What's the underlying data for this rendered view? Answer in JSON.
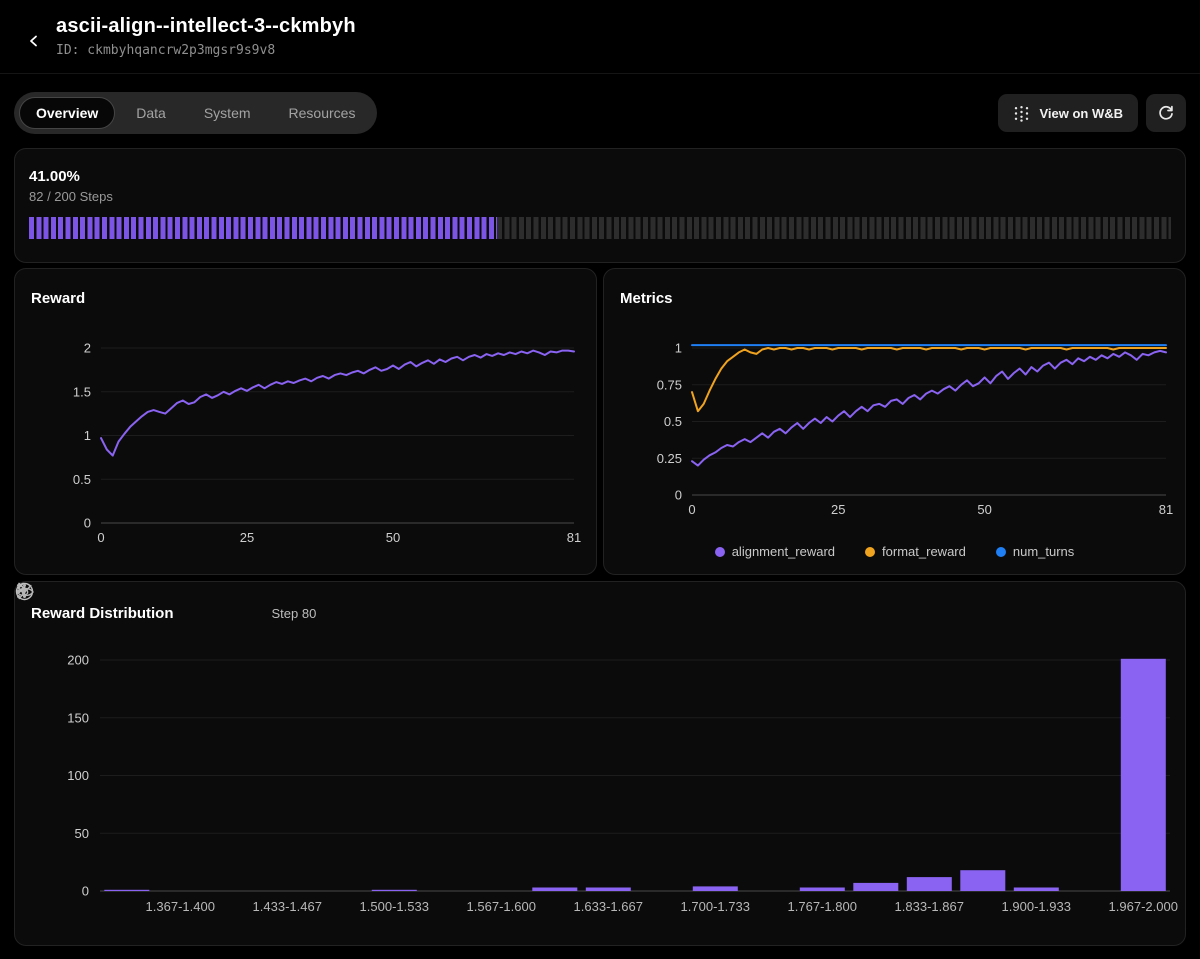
{
  "header": {
    "title": "ascii-align--intellect-3--ckmbyh",
    "run_id": "ID: ckmbyhqancrw2p3mgsr9s9v8"
  },
  "toolbar": {
    "tabs": [
      {
        "label": "Overview",
        "active": true
      },
      {
        "label": "Data",
        "active": false
      },
      {
        "label": "System",
        "active": false
      },
      {
        "label": "Resources",
        "active": false
      }
    ],
    "wandb_label": "View on W&B"
  },
  "progress": {
    "percent_label": "41.00%",
    "steps_label": "82 / 200 Steps",
    "fraction": 0.41
  },
  "distribution": {
    "title": "Reward Distribution",
    "step_label": "Step 80"
  },
  "colors": {
    "accent_purple": "#8a63f2",
    "progress_purple": "#7d55e6",
    "orange": "#f0a31f",
    "blue": "#1f7ff5",
    "grid": "#1d1d1d",
    "axis": "#4a4a4a",
    "tick_text": "#cfcfcf"
  },
  "chart_data": [
    {
      "type": "line",
      "title": "Reward",
      "xlabel": "",
      "ylabel": "",
      "xticks": [
        0,
        25,
        50,
        81
      ],
      "yticks": [
        0,
        0.5,
        1,
        1.5,
        2
      ],
      "xmax": 81,
      "ylim": [
        0,
        2.1
      ],
      "grid": true,
      "series": [
        {
          "name": "reward",
          "color": "#8a63f2",
          "values": [
            0.97,
            0.84,
            0.77,
            0.93,
            1.02,
            1.1,
            1.16,
            1.22,
            1.27,
            1.29,
            1.27,
            1.25,
            1.31,
            1.37,
            1.4,
            1.36,
            1.38,
            1.44,
            1.47,
            1.43,
            1.46,
            1.5,
            1.47,
            1.51,
            1.54,
            1.51,
            1.55,
            1.58,
            1.54,
            1.58,
            1.61,
            1.59,
            1.62,
            1.6,
            1.63,
            1.65,
            1.62,
            1.66,
            1.68,
            1.65,
            1.69,
            1.71,
            1.69,
            1.72,
            1.74,
            1.71,
            1.75,
            1.78,
            1.74,
            1.76,
            1.8,
            1.76,
            1.81,
            1.84,
            1.79,
            1.83,
            1.86,
            1.82,
            1.87,
            1.84,
            1.88,
            1.9,
            1.86,
            1.9,
            1.92,
            1.89,
            1.93,
            1.91,
            1.94,
            1.92,
            1.95,
            1.93,
            1.96,
            1.94,
            1.97,
            1.95,
            1.92,
            1.96,
            1.95,
            1.97,
            1.97,
            1.96
          ]
        }
      ]
    },
    {
      "type": "line",
      "title": "Metrics",
      "xlabel": "",
      "ylabel": "",
      "xticks": [
        0,
        25,
        50,
        81
      ],
      "yticks": [
        0,
        0.25,
        0.5,
        0.75,
        1
      ],
      "xmax": 81,
      "ylim": [
        0,
        1.08
      ],
      "grid": true,
      "legend_position": "bottom",
      "legend": [
        {
          "label": "alignment_reward",
          "color": "#8a63f2"
        },
        {
          "label": "format_reward",
          "color": "#f0a31f"
        },
        {
          "label": "num_turns",
          "color": "#1f7ff5"
        }
      ],
      "series": [
        {
          "name": "alignment_reward",
          "color": "#8a63f2",
          "values": [
            0.23,
            0.2,
            0.24,
            0.27,
            0.29,
            0.32,
            0.34,
            0.33,
            0.36,
            0.38,
            0.36,
            0.39,
            0.42,
            0.39,
            0.43,
            0.45,
            0.42,
            0.46,
            0.49,
            0.45,
            0.49,
            0.52,
            0.49,
            0.53,
            0.5,
            0.54,
            0.57,
            0.53,
            0.57,
            0.6,
            0.57,
            0.61,
            0.62,
            0.6,
            0.64,
            0.65,
            0.62,
            0.66,
            0.68,
            0.65,
            0.69,
            0.71,
            0.69,
            0.72,
            0.74,
            0.71,
            0.75,
            0.78,
            0.74,
            0.76,
            0.8,
            0.76,
            0.81,
            0.84,
            0.79,
            0.83,
            0.86,
            0.82,
            0.87,
            0.84,
            0.88,
            0.9,
            0.86,
            0.9,
            0.92,
            0.89,
            0.93,
            0.91,
            0.94,
            0.92,
            0.95,
            0.93,
            0.96,
            0.94,
            0.97,
            0.95,
            0.92,
            0.96,
            0.95,
            0.97,
            0.98,
            0.97
          ]
        },
        {
          "name": "format_reward",
          "color": "#f0a31f",
          "values": [
            0.7,
            0.57,
            0.62,
            0.71,
            0.79,
            0.86,
            0.91,
            0.94,
            0.97,
            0.99,
            0.97,
            0.96,
            0.99,
            1.0,
            0.99,
            1.0,
            1.0,
            0.99,
            1.0,
            1.0,
            0.99,
            1.0,
            1.0,
            1.0,
            0.99,
            1.0,
            1.0,
            1.0,
            1.0,
            0.99,
            1.0,
            1.0,
            1.0,
            1.0,
            1.0,
            0.99,
            1.0,
            1.0,
            1.0,
            1.0,
            0.99,
            1.0,
            1.0,
            1.0,
            1.0,
            1.0,
            0.99,
            1.0,
            1.0,
            1.0,
            0.99,
            1.0,
            1.0,
            1.0,
            1.0,
            1.0,
            1.0,
            0.99,
            1.0,
            1.0,
            1.0,
            1.0,
            1.0,
            1.0,
            0.99,
            1.0,
            1.0,
            1.0,
            1.0,
            1.0,
            1.0,
            1.0,
            0.99,
            1.0,
            1.0,
            1.0,
            1.0,
            1.0,
            1.0,
            1.0,
            1.0,
            1.0
          ]
        },
        {
          "name": "num_turns",
          "color": "#1f7ff5",
          "constant": 1.02
        }
      ]
    },
    {
      "type": "bar",
      "title": "Reward Distribution",
      "step": 80,
      "categories": [
        "1.333-1.367",
        "1.367-1.400",
        "1.400-1.433",
        "1.433-1.467",
        "1.467-1.500",
        "1.500-1.533",
        "1.533-1.567",
        "1.567-1.600",
        "1.600-1.633",
        "1.633-1.667",
        "1.667-1.700",
        "1.700-1.733",
        "1.733-1.767",
        "1.767-1.800",
        "1.800-1.833",
        "1.833-1.867",
        "1.867-1.900",
        "1.900-1.933",
        "1.933-1.967",
        "1.967-2.000"
      ],
      "values": [
        1,
        0,
        0,
        0,
        0,
        1,
        0,
        0,
        3,
        3,
        0,
        4,
        0,
        3,
        7,
        12,
        18,
        3,
        0,
        201
      ],
      "labeled_category_indices": [
        1,
        3,
        5,
        7,
        9,
        11,
        13,
        15,
        17,
        19
      ],
      "yticks": [
        0,
        50,
        100,
        150,
        200
      ],
      "ylim": [
        0,
        205
      ],
      "grid": true,
      "bar_color": "#8a63f2"
    }
  ]
}
